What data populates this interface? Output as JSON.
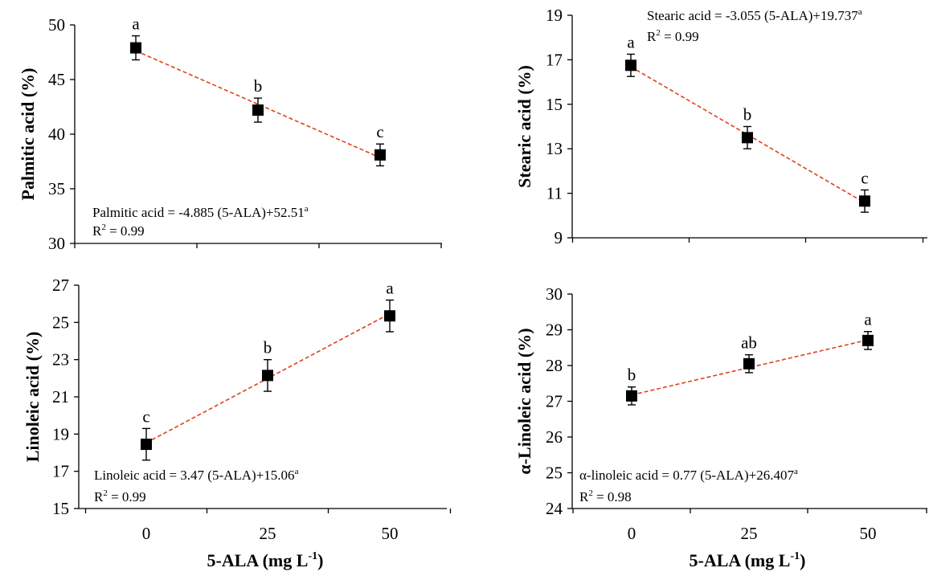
{
  "chart_data": [
    {
      "type": "scatter",
      "categories": [
        "0",
        "25",
        "50"
      ],
      "x": [
        0,
        25,
        50
      ],
      "ylabel": "Palmitic acid (%)",
      "xlabel": "",
      "ylim": [
        30,
        50
      ],
      "yticks": [
        30,
        35,
        40,
        45,
        50
      ],
      "show_xticklabels": false,
      "values": [
        47.9,
        42.2,
        38.1
      ],
      "errors": [
        1.1,
        1.1,
        1.0
      ],
      "letters": [
        "a",
        "b",
        "c"
      ],
      "fit": {
        "line1": "Palmitic acid = -4.885 (5-ALA)+52.51",
        "line1_sup": "a",
        "r2_prefix": "R",
        "r2_sup": "2",
        "r2_value": " = 0.99"
      },
      "fit_color": "#e0401c",
      "marker_color": "#000000"
    },
    {
      "type": "scatter",
      "categories": [
        "0",
        "25",
        "50"
      ],
      "x": [
        0,
        25,
        50
      ],
      "ylabel": "Stearic acid (%)",
      "xlabel": "",
      "ylim": [
        9,
        19
      ],
      "yticks": [
        9,
        11,
        13,
        15,
        17,
        19
      ],
      "show_xticklabels": false,
      "values": [
        16.75,
        13.5,
        10.65
      ],
      "errors": [
        0.5,
        0.5,
        0.5
      ],
      "letters": [
        "a",
        "b",
        "c"
      ],
      "fit": {
        "line1": "Stearic acid = -3.055 (5-ALA)+19.737",
        "line1_sup": "a",
        "r2_prefix": "R",
        "r2_sup": "2",
        "r2_value": " = 0.99"
      },
      "fit_color": "#e0401c",
      "marker_color": "#000000"
    },
    {
      "type": "scatter",
      "categories": [
        "0",
        "25",
        "50"
      ],
      "x": [
        0,
        25,
        50
      ],
      "ylabel": "Linoleic acid (%)",
      "xlabel": "5-ALA (mg L-1)",
      "ylim": [
        15,
        27
      ],
      "yticks": [
        15,
        17,
        19,
        21,
        23,
        25,
        27
      ],
      "show_xticklabels": true,
      "values": [
        18.45,
        22.15,
        25.35
      ],
      "errors": [
        0.85,
        0.85,
        0.85
      ],
      "letters": [
        "c",
        "b",
        "a"
      ],
      "fit": {
        "line1": "Linoleic acid = 3.47 (5-ALA)+15.06",
        "line1_sup": "a",
        "r2_prefix": "R",
        "r2_sup": "2",
        "r2_value": " = 0.99"
      },
      "fit_color": "#e0401c",
      "marker_color": "#000000"
    },
    {
      "type": "scatter",
      "categories": [
        "0",
        "25",
        "50"
      ],
      "x": [
        0,
        25,
        50
      ],
      "ylabel": "α-Linoleic acid (%)",
      "xlabel": "5-ALA (mg L-1)",
      "ylim": [
        24,
        30
      ],
      "yticks": [
        24,
        25,
        26,
        27,
        28,
        29,
        30
      ],
      "show_xticklabels": true,
      "values": [
        27.15,
        28.05,
        28.7
      ],
      "errors": [
        0.25,
        0.25,
        0.25
      ],
      "letters": [
        "b",
        "ab",
        "a"
      ],
      "fit": {
        "line1": "α-linoleic acid = 0.77 (5-ALA)+26.407",
        "line1_sup": "a",
        "r2_prefix": "R",
        "r2_sup": "2",
        "r2_value": " = 0.98"
      },
      "fit_color": "#e0401c",
      "marker_color": "#000000"
    }
  ]
}
